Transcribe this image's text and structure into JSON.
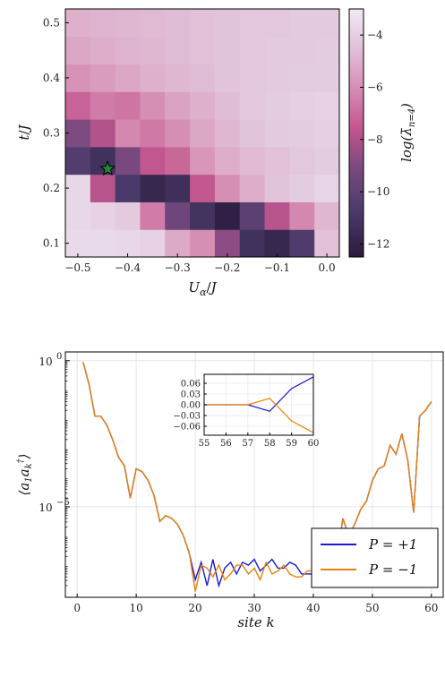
{
  "chart_data": [
    {
      "type": "heatmap",
      "xlabel": "U_α / J",
      "ylabel": "t / J",
      "x_ticks": [
        "−0.5",
        "−0.4",
        "−0.3",
        "−0.2",
        "−0.1",
        "0.0"
      ],
      "y_ticks": [
        "0.1",
        "0.2",
        "0.3",
        "0.4",
        "0.5"
      ],
      "x_centers": [
        -0.5,
        -0.45,
        -0.4,
        -0.35,
        -0.3,
        -0.25,
        -0.2,
        -0.15,
        -0.1,
        -0.05,
        0.0
      ],
      "y_centers": [
        0.1,
        0.15,
        0.2,
        0.25,
        0.3,
        0.35,
        0.4,
        0.45,
        0.5
      ],
      "xlim": [
        -0.525,
        0.025
      ],
      "ylim": [
        0.075,
        0.525
      ],
      "z": [
        [
          -3.6,
          -3.6,
          -3.7,
          -3.9,
          -5.2,
          -6.0,
          -8.7,
          -11.3,
          -11.8,
          -10.6,
          -4.5
        ],
        [
          -3.7,
          -3.9,
          -4.2,
          -6.5,
          -9.5,
          -11.2,
          -12.2,
          -10.2,
          -7.8,
          -6.2,
          -4.8
        ],
        [
          -3.7,
          -7.8,
          -10.8,
          -11.8,
          -11.4,
          -7.6,
          -6.0,
          -5.1,
          -4.4,
          -4.1,
          -3.8
        ],
        [
          -10.5,
          -11.3,
          -9.2,
          -7.6,
          -7.1,
          -5.8,
          -5.1,
          -4.7,
          -4.5,
          -4.3,
          -4.1
        ],
        [
          -9.0,
          -7.9,
          -6.2,
          -6.6,
          -6.0,
          -5.3,
          -4.8,
          -4.4,
          -4.2,
          -4.1,
          -4.0
        ],
        [
          -7.2,
          -6.5,
          -6.7,
          -6.0,
          -5.4,
          -5.0,
          -4.6,
          -4.3,
          -4.1,
          -4.0,
          -3.9
        ],
        [
          -5.9,
          -5.6,
          -5.3,
          -5.0,
          -4.8,
          -4.6,
          -4.4,
          -4.3,
          -4.2,
          -4.1,
          -4.1
        ],
        [
          -5.3,
          -5.1,
          -4.9,
          -4.8,
          -4.6,
          -4.5,
          -4.4,
          -4.3,
          -4.2,
          -4.2,
          -4.1
        ],
        [
          -5.0,
          -4.9,
          -4.8,
          -4.7,
          -4.6,
          -4.5,
          -4.4,
          -4.3,
          -4.3,
          -4.2,
          -4.2
        ]
      ],
      "zlim": [
        -12.5,
        -3.0
      ],
      "colorbar_ticks": [
        "−4",
        "−6",
        "−8",
        "−10",
        "−12"
      ],
      "colorbar_label": "log(λ̄_{n=4})",
      "marker": {
        "type": "star",
        "x": -0.44,
        "y": 0.235,
        "color": "#1f8a2a"
      }
    },
    {
      "type": "line",
      "xlabel": "site k",
      "ylabel": "⟨a₁a_k†⟩",
      "x_ticks": [
        "0",
        "10",
        "20",
        "30",
        "40",
        "50",
        "60"
      ],
      "y_ticks": [
        "10^0",
        "10^−5"
      ],
      "y_scale": "log",
      "xlim": [
        -2,
        62
      ],
      "ylim_log10": [
        -8.1,
        0.3
      ],
      "grid": true,
      "legend_position": "bottom-right",
      "x": [
        1,
        2,
        3,
        4,
        5,
        6,
        7,
        8,
        9,
        10,
        11,
        12,
        13,
        14,
        15,
        16,
        17,
        18,
        19,
        20,
        21,
        22,
        23,
        24,
        25,
        26,
        27,
        28,
        29,
        30,
        31,
        32,
        33,
        34,
        35,
        36,
        37,
        38,
        39,
        40,
        41,
        42,
        43,
        44,
        45,
        46,
        47,
        48,
        49,
        50,
        51,
        52,
        53,
        54,
        55,
        56,
        57,
        58,
        59,
        60
      ],
      "series": [
        {
          "name": "P = +1",
          "color": "#1a1ad6",
          "log10_values": [
            -0.05,
            -0.8,
            -1.9,
            -1.9,
            -2.2,
            -2.7,
            -3.3,
            -3.6,
            -4.7,
            -3.7,
            -3.8,
            -4.1,
            -4.6,
            -5.5,
            -5.3,
            -5.4,
            -5.6,
            -6.0,
            -6.6,
            -7.5,
            -6.9,
            -7.7,
            -6.8,
            -7.7,
            -7.1,
            -6.9,
            -7.3,
            -6.9,
            -7.0,
            -6.8,
            -7.2,
            -7.0,
            -6.8,
            -7.1,
            -7.1,
            -6.9,
            -7.0,
            -7.3,
            -7.3,
            -7.3,
            -6.9,
            -7.1,
            -7.2,
            -6.8,
            -5.4,
            -6.0,
            -5.6,
            -5.1,
            -4.8,
            -4.1,
            -3.7,
            -3.6,
            -2.9,
            -3.2,
            -2.5,
            -3.4,
            -5.2,
            -1.9,
            -1.7,
            -1.4
          ]
        },
        {
          "name": "P = −1",
          "color": "#e8820c",
          "log10_values": [
            -0.05,
            -0.8,
            -1.9,
            -1.9,
            -2.2,
            -2.7,
            -3.3,
            -3.6,
            -4.7,
            -3.7,
            -3.8,
            -4.1,
            -4.6,
            -5.5,
            -5.3,
            -5.4,
            -5.6,
            -6.0,
            -6.6,
            -7.9,
            -7.0,
            -7.1,
            -7.4,
            -7.0,
            -7.5,
            -7.3,
            -7.0,
            -7.0,
            -7.3,
            -7.1,
            -7.5,
            -6.9,
            -7.3,
            -7.2,
            -7.0,
            -7.3,
            -7.4,
            -7.4,
            -7.2,
            -7.2,
            -7.2,
            -7.1,
            -7.1,
            -6.7,
            -5.4,
            -6.0,
            -5.6,
            -5.1,
            -4.8,
            -4.1,
            -3.7,
            -3.6,
            -2.9,
            -3.2,
            -2.5,
            -3.4,
            -5.2,
            -1.9,
            -1.7,
            -1.4
          ]
        }
      ],
      "inset": {
        "x_ticks": [
          "55",
          "56",
          "57",
          "58",
          "59",
          "60"
        ],
        "y_ticks": [
          "0.06",
          "0.03",
          "0.00",
          "−0.03",
          "−0.06"
        ],
        "xlim": [
          55,
          60
        ],
        "ylim": [
          -0.085,
          0.085
        ],
        "x": [
          55,
          56,
          57,
          58,
          59,
          60
        ],
        "series": [
          {
            "name": "P = +1",
            "color": "#1a1ad6",
            "values": [
              0.0,
              0.0,
              0.0,
              -0.018,
              0.045,
              0.078
            ]
          },
          {
            "name": "P = −1",
            "color": "#e8820c",
            "values": [
              0.0,
              0.0,
              0.0,
              0.018,
              -0.045,
              -0.078
            ]
          }
        ]
      }
    }
  ]
}
